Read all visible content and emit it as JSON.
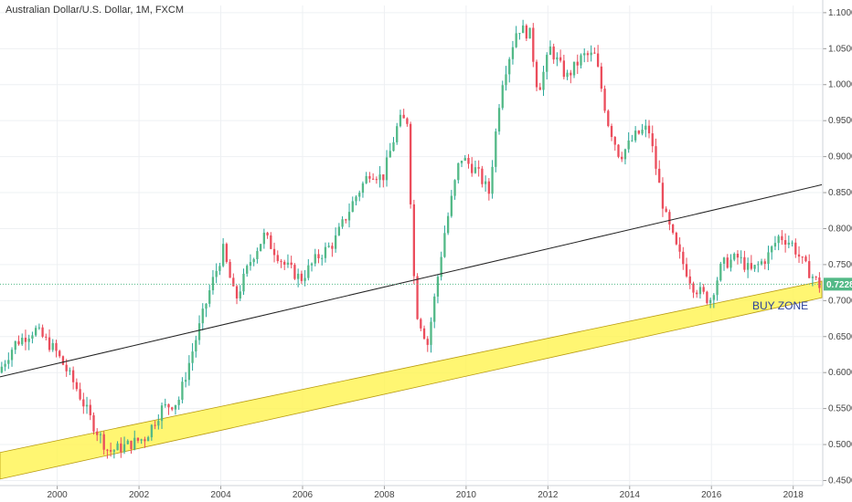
{
  "chart_data": {
    "type": "candlestick",
    "title": "Australian Dollar/U.S. Dollar, 1M, FXCM",
    "x_ticks": [
      "2000",
      "2002",
      "2004",
      "2006",
      "2008",
      "2010",
      "2012",
      "2014",
      "2016",
      "2018"
    ],
    "x_range": [
      1998.6,
      2018.7
    ],
    "y_ticks": [
      "0.45000",
      "0.50000",
      "0.55000",
      "0.60000",
      "0.65000",
      "0.70000",
      "0.75000",
      "0.80000",
      "0.85000",
      "0.90000",
      "0.95000",
      "1.00000",
      "1.05000",
      "1.10000"
    ],
    "y_range": [
      0.443,
      1.11
    ],
    "grid": true,
    "current_price": "0.72284",
    "current_price_value": 0.7228,
    "close_path": [
      {
        "x": 1998.6,
        "y": 0.6
      },
      {
        "x": 1999.0,
        "y": 0.64
      },
      {
        "x": 1999.5,
        "y": 0.66
      },
      {
        "x": 2000.0,
        "y": 0.63
      },
      {
        "x": 2000.5,
        "y": 0.58
      },
      {
        "x": 2000.9,
        "y": 0.53
      },
      {
        "x": 2001.3,
        "y": 0.49
      },
      {
        "x": 2001.8,
        "y": 0.5
      },
      {
        "x": 2002.2,
        "y": 0.51
      },
      {
        "x": 2002.6,
        "y": 0.55
      },
      {
        "x": 2003.0,
        "y": 0.56
      },
      {
        "x": 2003.5,
        "y": 0.66
      },
      {
        "x": 2003.8,
        "y": 0.72
      },
      {
        "x": 2004.1,
        "y": 0.77
      },
      {
        "x": 2004.4,
        "y": 0.7
      },
      {
        "x": 2004.8,
        "y": 0.76
      },
      {
        "x": 2005.1,
        "y": 0.79
      },
      {
        "x": 2005.6,
        "y": 0.75
      },
      {
        "x": 2006.0,
        "y": 0.73
      },
      {
        "x": 2006.4,
        "y": 0.76
      },
      {
        "x": 2006.8,
        "y": 0.78
      },
      {
        "x": 2007.3,
        "y": 0.84
      },
      {
        "x": 2007.7,
        "y": 0.88
      },
      {
        "x": 2008.0,
        "y": 0.87
      },
      {
        "x": 2008.4,
        "y": 0.95
      },
      {
        "x": 2008.6,
        "y": 0.95
      },
      {
        "x": 2008.8,
        "y": 0.69
      },
      {
        "x": 2009.1,
        "y": 0.64
      },
      {
        "x": 2009.5,
        "y": 0.79
      },
      {
        "x": 2009.9,
        "y": 0.9
      },
      {
        "x": 2010.3,
        "y": 0.88
      },
      {
        "x": 2010.6,
        "y": 0.85
      },
      {
        "x": 2010.9,
        "y": 1.0
      },
      {
        "x": 2011.3,
        "y": 1.08
      },
      {
        "x": 2011.6,
        "y": 1.07
      },
      {
        "x": 2011.8,
        "y": 0.99
      },
      {
        "x": 2012.1,
        "y": 1.05
      },
      {
        "x": 2012.5,
        "y": 1.01
      },
      {
        "x": 2012.9,
        "y": 1.04
      },
      {
        "x": 2013.2,
        "y": 1.04
      },
      {
        "x": 2013.5,
        "y": 0.95
      },
      {
        "x": 2013.8,
        "y": 0.9
      },
      {
        "x": 2014.2,
        "y": 0.93
      },
      {
        "x": 2014.5,
        "y": 0.94
      },
      {
        "x": 2014.9,
        "y": 0.82
      },
      {
        "x": 2015.2,
        "y": 0.77
      },
      {
        "x": 2015.6,
        "y": 0.72
      },
      {
        "x": 2016.0,
        "y": 0.7
      },
      {
        "x": 2016.3,
        "y": 0.75
      },
      {
        "x": 2016.7,
        "y": 0.76
      },
      {
        "x": 2017.0,
        "y": 0.74
      },
      {
        "x": 2017.4,
        "y": 0.76
      },
      {
        "x": 2017.7,
        "y": 0.79
      },
      {
        "x": 2018.0,
        "y": 0.78
      },
      {
        "x": 2018.3,
        "y": 0.75
      },
      {
        "x": 2018.7,
        "y": 0.72
      }
    ],
    "trendline": {
      "color": "#222222",
      "start": {
        "x": 1998.6,
        "y": 0.594
      },
      "end": {
        "x": 2018.7,
        "y": 0.861
      }
    },
    "buy_zone": {
      "label": "BUY ZONE",
      "fill": "#fff44f",
      "upper_start": {
        "x": 1998.6,
        "y": 0.489
      },
      "upper_end": {
        "x": 2018.7,
        "y": 0.727
      },
      "lower_start": {
        "x": 1998.6,
        "y": 0.452
      },
      "lower_end": {
        "x": 2018.7,
        "y": 0.704
      }
    }
  },
  "colors": {
    "up": "#26a69a",
    "up_fill": "#53b987",
    "down": "#eb4d5c",
    "grid": "#eef0f3",
    "price_line": "#53b987"
  }
}
